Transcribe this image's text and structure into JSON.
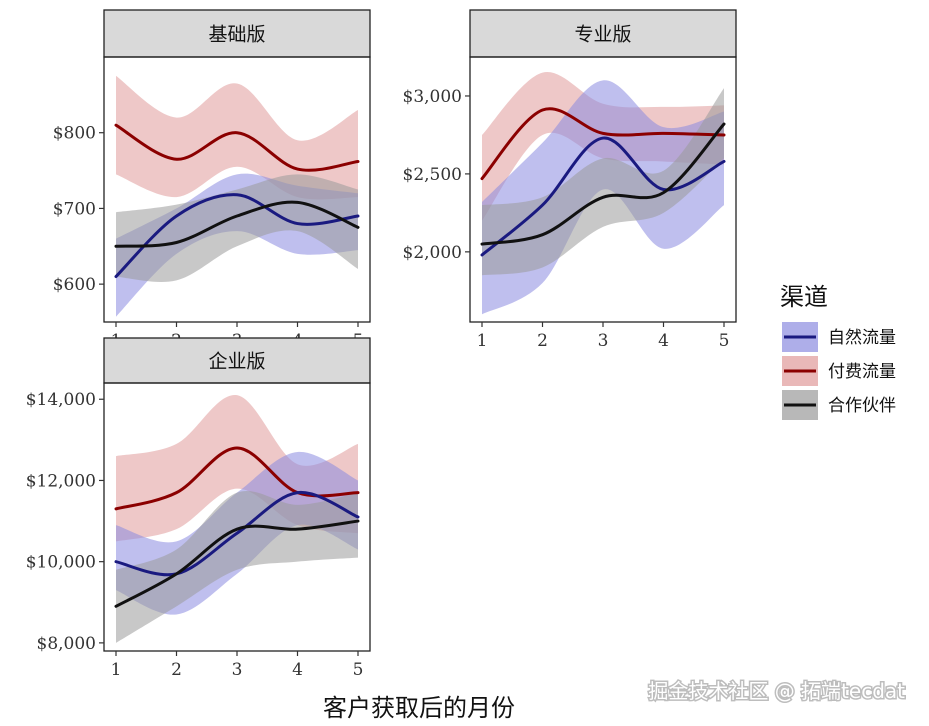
{
  "chart_data": {
    "type": "line",
    "xlabel": "客户获取后的月份",
    "x": [
      1,
      2,
      3,
      4,
      5
    ],
    "legend": {
      "title": "渠道",
      "position": "right",
      "entries": [
        {
          "name": "自然流量",
          "color": "#1a1a80",
          "fill": "#8b8be0"
        },
        {
          "name": "付费流量",
          "color": "#8b0000",
          "fill": "#e09a9a"
        },
        {
          "name": "合作伙伴",
          "color": "#111111",
          "fill": "#9a9a9a"
        }
      ]
    },
    "panels": [
      {
        "title": "基础版",
        "ylim": [
          550,
          900
        ],
        "yticks": [
          600,
          700,
          800
        ],
        "ytick_labels": [
          "$600",
          "$700",
          "$800"
        ],
        "series": [
          {
            "name": "自然流量",
            "y": [
              610,
              690,
              718,
              680,
              690
            ],
            "lower": [
              557,
              640,
              670,
              640,
              645
            ],
            "upper": [
              660,
              700,
              745,
              730,
              720
            ]
          },
          {
            "name": "付费流量",
            "y": [
              810,
              765,
              800,
              752,
              762
            ],
            "lower": [
              745,
              715,
              755,
              715,
              715
            ],
            "upper": [
              875,
              820,
              865,
              790,
              830
            ]
          },
          {
            "name": "合作伙伴",
            "y": [
              650,
              655,
              690,
              708,
              675
            ],
            "lower": [
              610,
              605,
              650,
              670,
              620
            ],
            "upper": [
              695,
              705,
              725,
              745,
              725
            ]
          }
        ]
      },
      {
        "title": "专业版",
        "ylim": [
          1550,
          3250
        ],
        "yticks": [
          2000,
          2500,
          3000
        ],
        "ytick_labels": [
          "$2,000",
          "$2,500",
          "$3,000"
        ],
        "series": [
          {
            "name": "自然流量",
            "y": [
              1980,
              2300,
              2730,
              2400,
              2580
            ],
            "lower": [
              1600,
              1800,
              2400,
              2020,
              2300
            ],
            "upper": [
              2320,
              2700,
              3100,
              2800,
              2900
            ]
          },
          {
            "name": "付费流量",
            "y": [
              2470,
              2910,
              2760,
              2760,
              2750
            ],
            "lower": [
              2200,
              2750,
              2600,
              2580,
              2560
            ],
            "upper": [
              2750,
              3150,
              2950,
              2930,
              2940
            ]
          },
          {
            "name": "合作伙伴",
            "y": [
              2050,
              2110,
              2350,
              2380,
              2820
            ],
            "lower": [
              1850,
              1900,
              2160,
              2250,
              2600
            ],
            "upper": [
              2300,
              2350,
              2600,
              2520,
              3050
            ]
          }
        ]
      },
      {
        "title": "企业版",
        "ylim": [
          7800,
          14400
        ],
        "yticks": [
          8000,
          10000,
          12000,
          14000
        ],
        "ytick_labels": [
          "$8,000",
          "$10,000",
          "$12,000",
          "$14,000"
        ],
        "series": [
          {
            "name": "自然流量",
            "y": [
              10000,
              9700,
              10700,
              11700,
              11100
            ],
            "lower": [
              9300,
              8700,
              9700,
              10900,
              10300
            ],
            "upper": [
              10900,
              10500,
              11700,
              12700,
              12000
            ]
          },
          {
            "name": "付费流量",
            "y": [
              11300,
              11700,
              12800,
              11700,
              11700
            ],
            "lower": [
              10500,
              10800,
              11800,
              10900,
              10700
            ],
            "upper": [
              12600,
              12900,
              14100,
              12400,
              12900
            ]
          },
          {
            "name": "合作伙伴",
            "y": [
              8900,
              9700,
              10800,
              10800,
              11000
            ],
            "lower": [
              8000,
              8900,
              9800,
              10000,
              10100
            ],
            "upper": [
              9800,
              10300,
              11700,
              11400,
              11700
            ]
          }
        ]
      }
    ]
  },
  "watermark": "掘金技术社区 @ 拓端tecdat"
}
